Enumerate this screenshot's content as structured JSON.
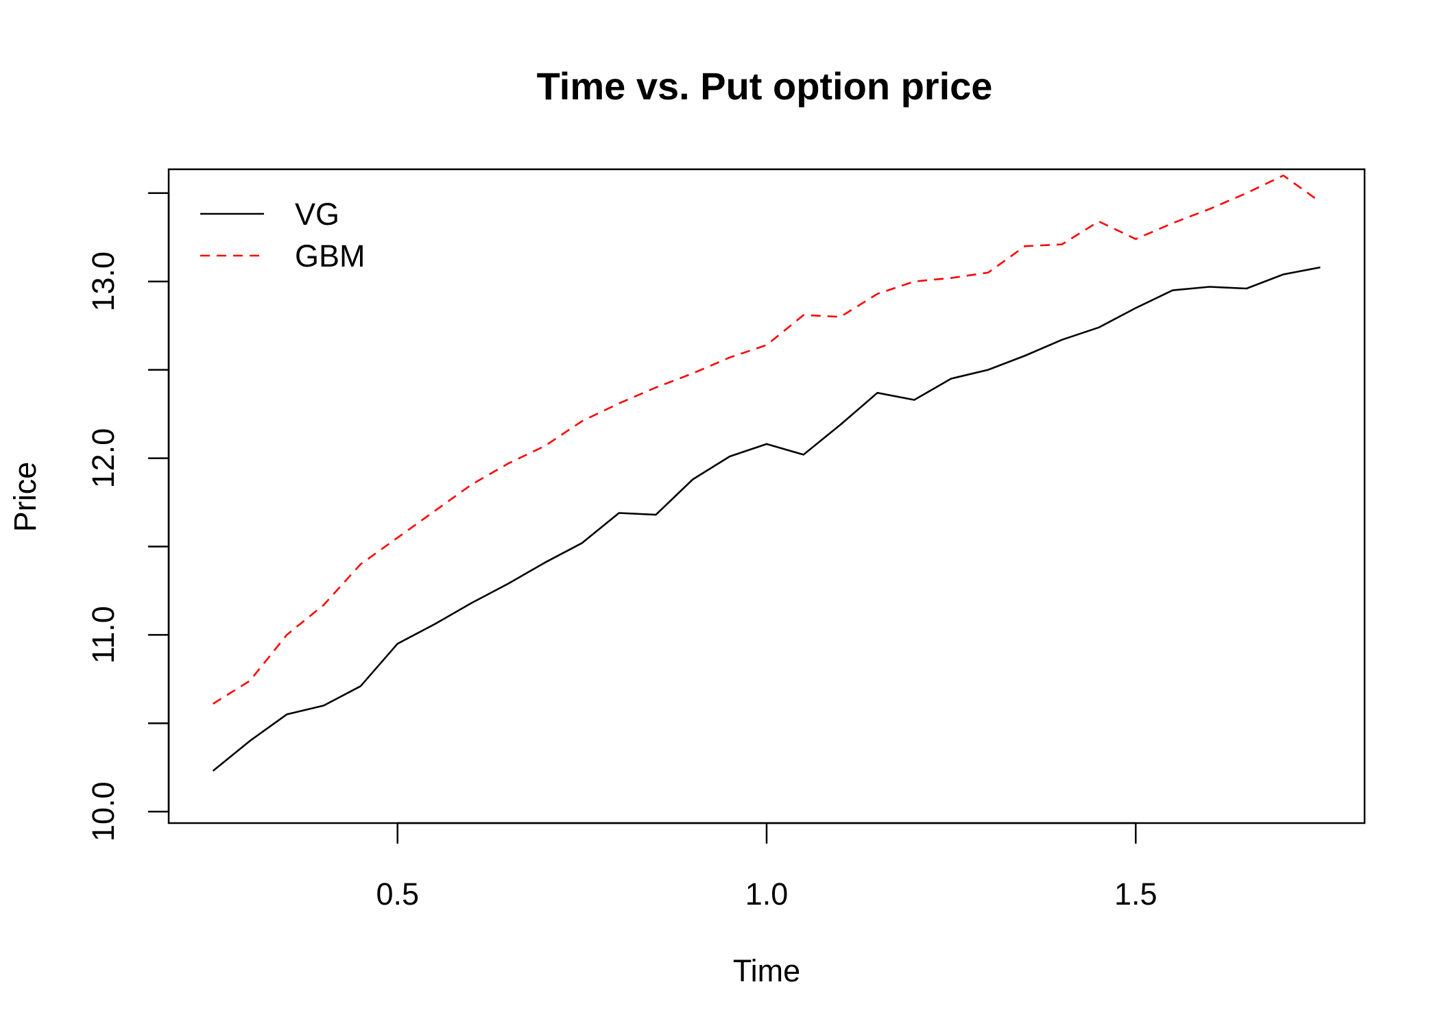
{
  "chart_data": {
    "type": "line",
    "title": "Time vs. Put option price",
    "xlabel": "Time",
    "ylabel": "Price",
    "xlim": [
      0.19,
      1.81
    ],
    "ylim": [
      9.935,
      13.635
    ],
    "xticks": [
      0.5,
      1.0,
      1.5
    ],
    "xtick_labels": [
      "0.5",
      "1.0",
      "1.5"
    ],
    "yticks": [
      10.0,
      10.5,
      11.0,
      11.5,
      12.0,
      12.5,
      13.0,
      13.5
    ],
    "ytick_labels": [
      "10.0",
      "",
      "11.0",
      "",
      "12.0",
      "",
      "13.0",
      ""
    ],
    "grid": false,
    "legend_position": "top-left",
    "x": [
      0.25,
      0.3,
      0.35,
      0.4,
      0.45,
      0.5,
      0.55,
      0.6,
      0.65,
      0.7,
      0.75,
      0.8,
      0.85,
      0.9,
      0.95,
      1.0,
      1.05,
      1.1,
      1.15,
      1.2,
      1.25,
      1.3,
      1.35,
      1.4,
      1.45,
      1.5,
      1.55,
      1.6,
      1.65,
      1.7,
      1.75
    ],
    "series": [
      {
        "name": "VG",
        "color": "#000000",
        "dash": "solid",
        "values": [
          10.23,
          10.4,
          10.55,
          10.6,
          10.71,
          10.95,
          11.06,
          11.18,
          11.29,
          11.41,
          11.52,
          11.69,
          11.68,
          11.88,
          12.01,
          12.08,
          12.02,
          12.19,
          12.37,
          12.33,
          12.45,
          12.5,
          12.58,
          12.67,
          12.74,
          12.85,
          12.95,
          12.97,
          12.96,
          13.04,
          13.08
        ]
      },
      {
        "name": "GBM",
        "color": "#ff0000",
        "dash": "dashed",
        "values": [
          10.61,
          10.74,
          11.0,
          11.17,
          11.4,
          11.55,
          11.7,
          11.85,
          11.97,
          12.07,
          12.21,
          12.31,
          12.4,
          12.48,
          12.57,
          12.64,
          12.81,
          12.8,
          12.93,
          13.0,
          13.02,
          13.05,
          13.2,
          13.21,
          13.34,
          13.24,
          13.33,
          13.41,
          13.5,
          13.6,
          13.45
        ]
      }
    ]
  }
}
